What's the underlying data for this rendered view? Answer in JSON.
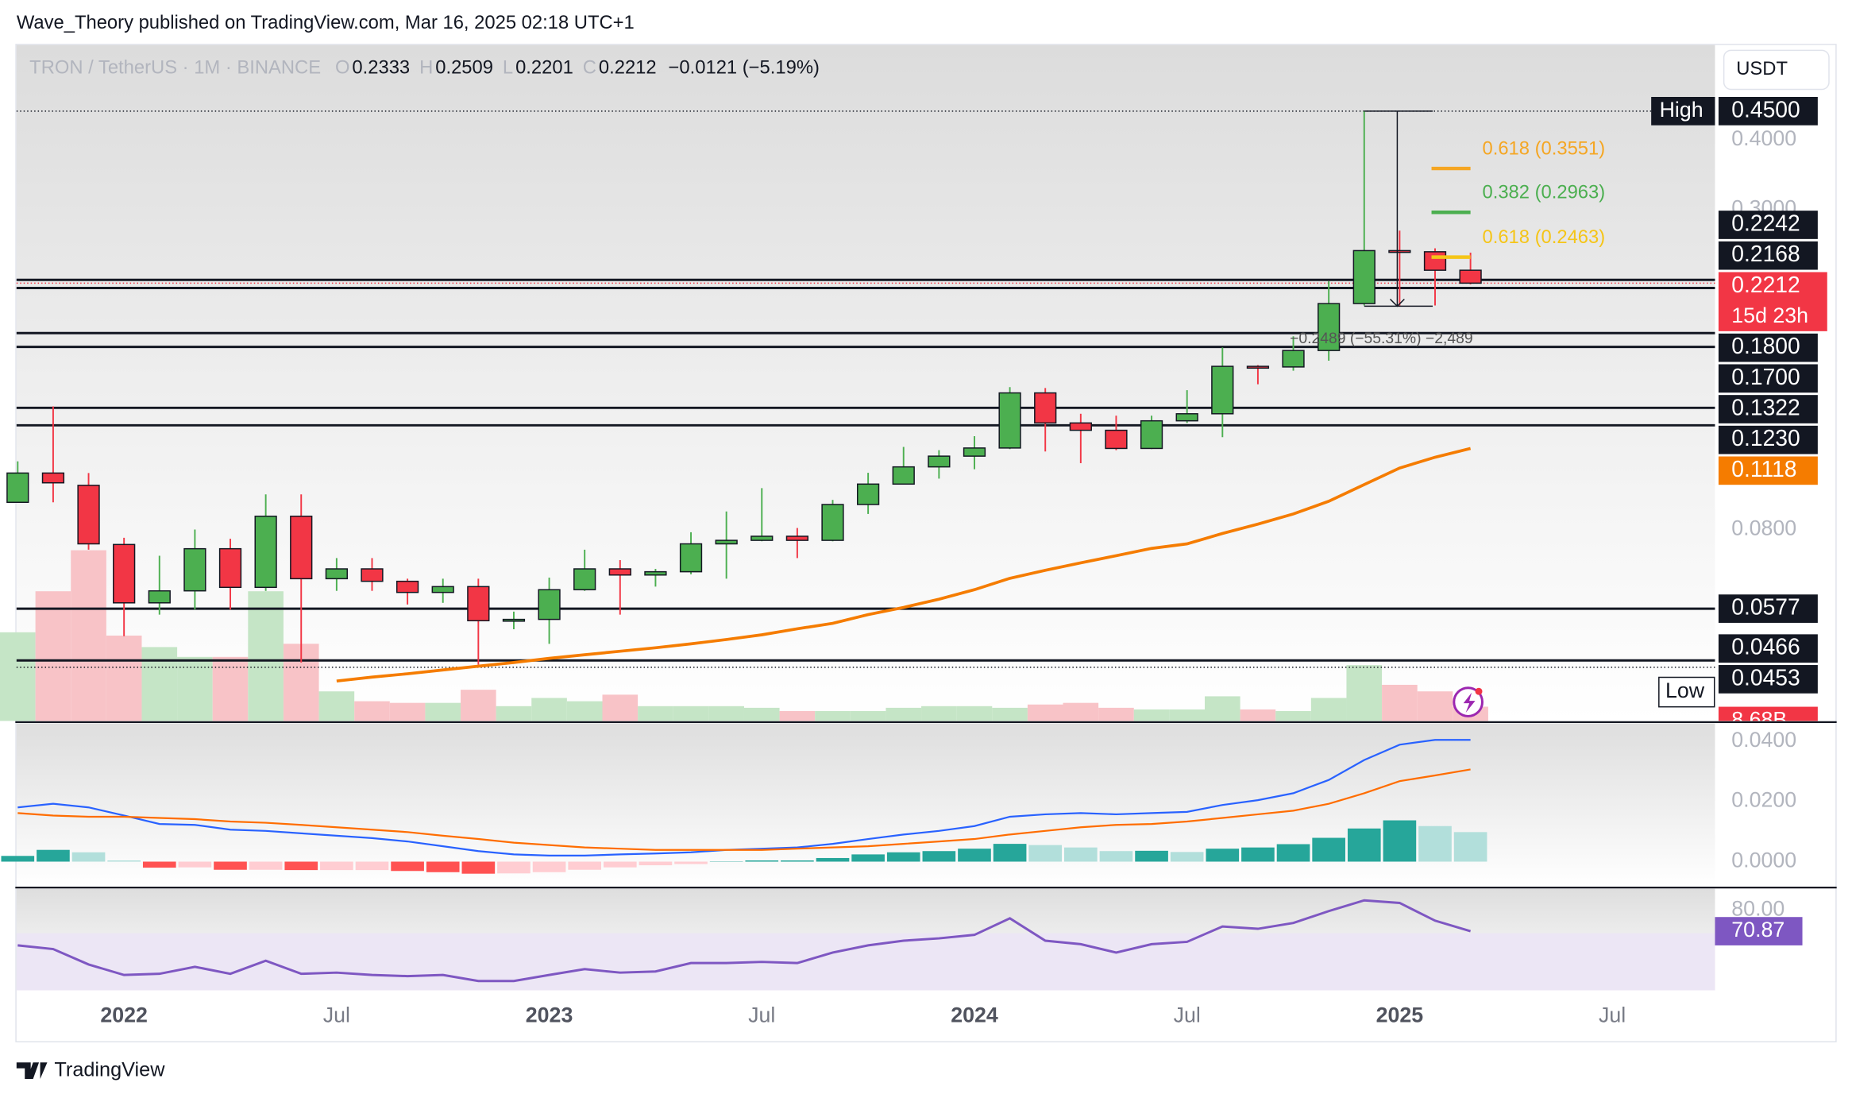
{
  "header": {
    "publisher": "Wave_Theory published on TradingView.com, Mar 16, 2025 02:18 UTC+1"
  },
  "footer": {
    "brand": "TradingView"
  },
  "currency_button": "USDT",
  "chart_data": [
    {
      "type": "candlestick",
      "title": "TRON / TetherUS · 1M · BINANCE",
      "legend": [
        {
          "label": "O",
          "value": 0.2333
        },
        {
          "label": "H",
          "value": 0.2509
        },
        {
          "label": "L",
          "value": 0.2201
        },
        {
          "label": "C",
          "value": 0.2212
        }
      ],
      "change": {
        "value": -0.0121,
        "label": "−0.0121 (−5.19%)"
      },
      "x": [
        "2021-10",
        "2021-11",
        "2021-12",
        "2022-01",
        "2022-02",
        "2022-03",
        "2022-04",
        "2022-05",
        "2022-06",
        "2022-07",
        "2022-08",
        "2022-09",
        "2022-10",
        "2022-11",
        "2022-12",
        "2023-01",
        "2023-02",
        "2023-03",
        "2023-04",
        "2023-05",
        "2023-06",
        "2023-07",
        "2023-08",
        "2023-09",
        "2023-10",
        "2023-11",
        "2023-12",
        "2024-01",
        "2024-02",
        "2024-03",
        "2024-04",
        "2024-05",
        "2024-06",
        "2024-07",
        "2024-08",
        "2024-09",
        "2024-10",
        "2024-11",
        "2024-12",
        "2025-01",
        "2025-02",
        "2025-03"
      ],
      "open": [
        0.0895,
        0.101,
        0.096,
        0.0752,
        0.0591,
        0.0621,
        0.0739,
        0.063,
        0.0845,
        0.0653,
        0.068,
        0.0646,
        0.0617,
        0.0632,
        0.0549,
        0.0552,
        0.0624,
        0.068,
        0.0663,
        0.0672,
        0.0754,
        0.0765,
        0.0778,
        0.0765,
        0.0887,
        0.0965,
        0.1036,
        0.1083,
        0.112,
        0.1406,
        0.1242,
        0.1205,
        0.1118,
        0.1253,
        0.129,
        0.1569,
        0.1565,
        0.1675,
        0.2033,
        0.253,
        0.2518,
        0.2333
      ],
      "high": [
        0.106,
        0.133,
        0.101,
        0.0773,
        0.0718,
        0.08,
        0.077,
        0.0925,
        0.0925,
        0.0711,
        0.0711,
        0.0653,
        0.0653,
        0.0653,
        0.057,
        0.0656,
        0.0736,
        0.0705,
        0.068,
        0.0791,
        0.0862,
        0.0949,
        0.0805,
        0.0904,
        0.1011,
        0.1125,
        0.111,
        0.1176,
        0.144,
        0.1435,
        0.129,
        0.128,
        0.128,
        0.1422,
        0.1696,
        0.1577,
        0.1776,
        0.2229,
        0.45,
        0.2748,
        0.2554,
        0.2509
      ],
      "low": [
        0.0895,
        0.0895,
        0.0736,
        0.0515,
        0.0563,
        0.0575,
        0.0575,
        0.0621,
        0.0462,
        0.0621,
        0.0621,
        0.0587,
        0.0591,
        0.0458,
        0.053,
        0.0499,
        0.0621,
        0.0563,
        0.0632,
        0.0665,
        0.0653,
        0.0762,
        0.0711,
        0.0762,
        0.0853,
        0.0963,
        0.0987,
        0.1026,
        0.1115,
        0.1104,
        0.1052,
        0.111,
        0.1115,
        0.1242,
        0.1171,
        0.1457,
        0.1541,
        0.1606,
        0.2017,
        0.2017,
        0.2017,
        0.2201
      ],
      "close": [
        0.101,
        0.097,
        0.0754,
        0.0591,
        0.0621,
        0.0739,
        0.063,
        0.0845,
        0.0653,
        0.068,
        0.0646,
        0.0617,
        0.0632,
        0.0549,
        0.0552,
        0.0624,
        0.068,
        0.0663,
        0.0672,
        0.0754,
        0.0765,
        0.0778,
        0.0765,
        0.0887,
        0.0965,
        0.1036,
        0.1083,
        0.112,
        0.1406,
        0.1242,
        0.1205,
        0.1118,
        0.1253,
        0.129,
        0.1569,
        0.1565,
        0.1675,
        0.2033,
        0.253,
        0.2518,
        0.2333,
        0.2212
      ],
      "up_color": "#4caf50",
      "down_color": "#f23645",
      "log_scale": true,
      "ylim": [
        0.0363,
        0.594
      ],
      "yticks": [
        {
          "value": 0.4,
          "label": "0.4000"
        },
        {
          "value": 0.3,
          "label": "0.3000"
        },
        {
          "value": 0.08,
          "label": "0.0800"
        }
      ],
      "xticks": [
        {
          "value": "2022-01",
          "label": "2022"
        },
        {
          "value": "2022-07",
          "label": "Jul"
        },
        {
          "value": "2023-01",
          "label": "2023"
        },
        {
          "value": "2023-07",
          "label": "Jul"
        },
        {
          "value": "2024-01",
          "label": "2024"
        },
        {
          "value": "2024-07",
          "label": "Jul"
        },
        {
          "value": "2025-01",
          "label": "2025"
        },
        {
          "value": "2025-07",
          "label": "Jul"
        }
      ],
      "ema": {
        "color": "#f57c00",
        "values": [
          null,
          null,
          null,
          null,
          null,
          null,
          null,
          null,
          null,
          0.0428,
          0.0435,
          0.0441,
          0.0448,
          0.0455,
          0.0462,
          0.047,
          0.0477,
          0.0484,
          0.0491,
          0.0499,
          0.0508,
          0.0518,
          0.0531,
          0.0543,
          0.0563,
          0.058,
          0.06,
          0.0624,
          0.0654,
          0.0676,
          0.0697,
          0.0718,
          0.074,
          0.0754,
          0.0787,
          0.0818,
          0.0853,
          0.0899,
          0.0963,
          0.1031,
          0.1078,
          0.1118
        ]
      },
      "volume": {
        "up_color": "#c5e5c6",
        "down_color": "#f8c3c7",
        "label_color": "#f23645",
        "values": [
          54,
          79,
          104,
          52,
          45,
          39,
          39,
          79,
          47,
          18,
          12,
          11,
          11,
          19,
          9,
          14,
          12,
          16,
          9,
          9,
          9,
          8,
          6,
          6,
          6,
          8,
          9,
          9,
          8,
          10,
          11,
          8,
          7,
          7,
          15,
          7,
          6,
          14,
          34,
          22,
          18,
          8.68
        ],
        "value_labels": [
          null,
          null,
          null,
          null,
          null,
          null,
          null,
          null,
          null,
          null,
          null,
          null,
          null,
          null,
          null,
          null,
          null,
          null,
          null,
          null,
          null,
          null,
          null,
          null,
          null,
          null,
          null,
          null,
          null,
          null,
          null,
          null,
          null,
          null,
          null,
          null,
          null,
          null,
          null,
          null,
          null,
          "8.68B"
        ]
      },
      "levels": [
        0.2242,
        0.2168,
        {
          "value": 0.18,
          "label": "0.1800"
        },
        {
          "value": 0.17,
          "label": "0.1700"
        },
        0.1322,
        {
          "value": 0.123,
          "label": "0.1230"
        },
        0.0577,
        0.0466
      ],
      "current_price": {
        "value": 0.2212,
        "countdown": "15d 23h",
        "color": "#f23645"
      },
      "high_marker": {
        "label": "High",
        "value": 0.45,
        "value_label": "0.4500"
      },
      "low_marker": {
        "label": "Low",
        "value": 0.0453,
        "value_label": "0.0453"
      },
      "annotations": [
        {
          "text": "0.618 (0.3551)",
          "value": 0.3551,
          "color": "#f5a623"
        },
        {
          "text": "0.382 (0.2963)",
          "value": 0.2963,
          "color": "#4caf50"
        },
        {
          "text": "0.618 (0.2463)",
          "value": 0.2463,
          "color": "#f5c518"
        }
      ],
      "measure": {
        "text": "−0.2489 (−55.31%) −2,489",
        "value": -0.2489
      }
    },
    {
      "type": "macd",
      "ylim": [
        -0.0082,
        0.0459
      ],
      "yticks": [
        {
          "value": 0.04,
          "label": "0.0400"
        },
        {
          "value": 0.02,
          "label": "0.0200"
        },
        {
          "value": 0,
          "label": "0.0000"
        }
      ],
      "macd_line": {
        "color": "#2962ff",
        "values": [
          0.018,
          0.0192,
          0.018,
          0.0153,
          0.0125,
          0.0122,
          0.0106,
          0.0102,
          0.0094,
          0.0086,
          0.0078,
          0.0067,
          0.0051,
          0.0035,
          0.0024,
          0.002,
          0.002,
          0.0024,
          0.0027,
          0.0031,
          0.0039,
          0.0043,
          0.0047,
          0.0059,
          0.0075,
          0.009,
          0.0102,
          0.0118,
          0.0149,
          0.0157,
          0.0161,
          0.0157,
          0.0161,
          0.0165,
          0.0188,
          0.0204,
          0.0227,
          0.0271,
          0.0337,
          0.0388,
          0.0404,
          0.0404
        ]
      },
      "signal_line": {
        "color": "#ff6d00",
        "values": [
          0.0161,
          0.0153,
          0.0149,
          0.0149,
          0.0145,
          0.0141,
          0.0133,
          0.0129,
          0.0122,
          0.0114,
          0.0106,
          0.0098,
          0.0086,
          0.0075,
          0.0063,
          0.0055,
          0.0047,
          0.0043,
          0.0039,
          0.0039,
          0.0039,
          0.0039,
          0.0043,
          0.0047,
          0.0051,
          0.0059,
          0.0067,
          0.0075,
          0.009,
          0.0102,
          0.0114,
          0.0122,
          0.0125,
          0.0133,
          0.0145,
          0.0157,
          0.0169,
          0.0192,
          0.0227,
          0.0267,
          0.0286,
          0.0306
        ]
      },
      "histogram": {
        "colors": [
          "#26a69a",
          "#b2dfdb",
          "#ff5252",
          "#ffcdd2"
        ],
        "values": [
          0.0019,
          0.0039,
          0.0031,
          0.0004,
          -0.002,
          -0.0019,
          -0.0027,
          -0.0027,
          -0.0028,
          -0.0028,
          -0.0028,
          -0.0031,
          -0.0035,
          -0.004,
          -0.0039,
          -0.0035,
          -0.0027,
          -0.0019,
          -0.0012,
          -0.0008,
          0.0001,
          0.0004,
          0.0004,
          0.0012,
          0.0024,
          0.0031,
          0.0035,
          0.0043,
          0.0059,
          0.0055,
          0.0047,
          0.0035,
          0.0036,
          0.0032,
          0.0043,
          0.0047,
          0.0058,
          0.0079,
          0.011,
          0.0137,
          0.0118,
          0.0098
        ]
      }
    },
    {
      "type": "rsi",
      "color": "#7e57c2",
      "band_color": "#ece6f5",
      "band": [
        30,
        70
      ],
      "ylim": [
        45.5,
        89.1
      ],
      "yticks": [
        {
          "value": 80,
          "label": "80.00"
        }
      ],
      "values": [
        64.8,
        63.2,
        56.6,
        52.1,
        52.6,
        55.6,
        52.6,
        58.2,
        52.6,
        53.1,
        52.1,
        51.6,
        52.1,
        49.5,
        49.5,
        52.1,
        54.6,
        53.1,
        53.6,
        57.2,
        57.2,
        57.7,
        57.2,
        61.7,
        64.8,
        66.8,
        67.8,
        69.3,
        76.4,
        66.8,
        65.3,
        61.7,
        65.3,
        66.3,
        72.9,
        71.9,
        74.4,
        79.5,
        84.1,
        83.0,
        75.4,
        70.87
      ]
    }
  ]
}
